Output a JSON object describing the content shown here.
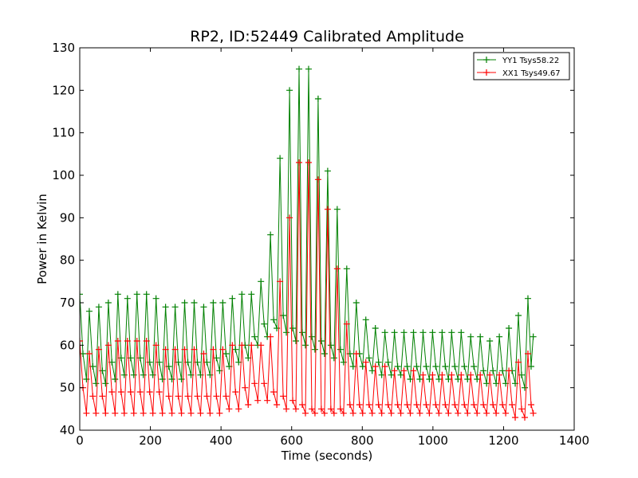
{
  "chart_data": {
    "type": "line",
    "title": "RP2, ID:52449 Calibrated Amplitude",
    "xlabel": "Time (seconds)",
    "ylabel": "Power in Kelvin",
    "xlim": [
      0,
      1400
    ],
    "ylim": [
      40,
      130
    ],
    "xticks": [
      0,
      200,
      400,
      600,
      800,
      1000,
      1200,
      1400
    ],
    "yticks": [
      40,
      50,
      60,
      70,
      80,
      90,
      100,
      110,
      120,
      130
    ],
    "grid": false,
    "legend_position": "top-right",
    "series": [
      {
        "name": "YY1 Tsys58.22",
        "color": "#008000",
        "marker": "+",
        "points": [
          [
            0,
            72
          ],
          [
            9,
            58
          ],
          [
            19,
            52
          ],
          [
            27,
            68
          ],
          [
            37,
            55
          ],
          [
            46,
            51
          ],
          [
            54,
            69
          ],
          [
            64,
            54
          ],
          [
            73,
            51
          ],
          [
            81,
            70
          ],
          [
            91,
            56
          ],
          [
            100,
            52
          ],
          [
            108,
            72
          ],
          [
            117,
            57
          ],
          [
            126,
            53
          ],
          [
            135,
            71
          ],
          [
            144,
            57
          ],
          [
            153,
            53
          ],
          [
            162,
            72
          ],
          [
            171,
            57
          ],
          [
            180,
            53
          ],
          [
            189,
            72
          ],
          [
            198,
            56
          ],
          [
            207,
            53
          ],
          [
            216,
            71
          ],
          [
            225,
            56
          ],
          [
            234,
            52
          ],
          [
            243,
            69
          ],
          [
            252,
            55
          ],
          [
            261,
            52
          ],
          [
            270,
            69
          ],
          [
            279,
            56
          ],
          [
            288,
            52
          ],
          [
            297,
            70
          ],
          [
            306,
            56
          ],
          [
            315,
            53
          ],
          [
            324,
            70
          ],
          [
            333,
            56
          ],
          [
            342,
            53
          ],
          [
            351,
            69
          ],
          [
            360,
            56
          ],
          [
            369,
            53
          ],
          [
            378,
            70
          ],
          [
            387,
            57
          ],
          [
            396,
            54
          ],
          [
            405,
            70
          ],
          [
            414,
            58
          ],
          [
            423,
            55
          ],
          [
            432,
            71
          ],
          [
            441,
            59
          ],
          [
            450,
            56
          ],
          [
            459,
            72
          ],
          [
            468,
            60
          ],
          [
            477,
            57
          ],
          [
            486,
            72
          ],
          [
            495,
            62
          ],
          [
            504,
            60
          ],
          [
            513,
            75
          ],
          [
            522,
            65
          ],
          [
            531,
            62
          ],
          [
            540,
            86
          ],
          [
            549,
            66
          ],
          [
            558,
            64
          ],
          [
            567,
            104
          ],
          [
            576,
            67
          ],
          [
            585,
            63
          ],
          [
            594,
            120
          ],
          [
            603,
            64
          ],
          [
            612,
            61
          ],
          [
            621,
            125
          ],
          [
            630,
            63
          ],
          [
            639,
            60
          ],
          [
            648,
            125
          ],
          [
            657,
            62
          ],
          [
            666,
            59
          ],
          [
            675,
            118
          ],
          [
            684,
            61
          ],
          [
            693,
            58
          ],
          [
            702,
            101
          ],
          [
            711,
            60
          ],
          [
            720,
            57
          ],
          [
            729,
            92
          ],
          [
            738,
            59
          ],
          [
            747,
            56
          ],
          [
            756,
            78
          ],
          [
            765,
            58
          ],
          [
            774,
            55
          ],
          [
            783,
            70
          ],
          [
            792,
            58
          ],
          [
            801,
            55
          ],
          [
            810,
            66
          ],
          [
            819,
            57
          ],
          [
            828,
            54
          ],
          [
            837,
            64
          ],
          [
            846,
            56
          ],
          [
            855,
            53
          ],
          [
            864,
            63
          ],
          [
            873,
            56
          ],
          [
            882,
            53
          ],
          [
            891,
            63
          ],
          [
            900,
            55
          ],
          [
            909,
            53
          ],
          [
            918,
            63
          ],
          [
            927,
            55
          ],
          [
            936,
            52
          ],
          [
            945,
            63
          ],
          [
            954,
            55
          ],
          [
            963,
            52
          ],
          [
            972,
            63
          ],
          [
            981,
            55
          ],
          [
            990,
            52
          ],
          [
            999,
            63
          ],
          [
            1008,
            55
          ],
          [
            1017,
            52
          ],
          [
            1026,
            63
          ],
          [
            1035,
            55
          ],
          [
            1044,
            52
          ],
          [
            1053,
            63
          ],
          [
            1062,
            55
          ],
          [
            1071,
            52
          ],
          [
            1080,
            63
          ],
          [
            1089,
            55
          ],
          [
            1098,
            52
          ],
          [
            1107,
            62
          ],
          [
            1116,
            55
          ],
          [
            1125,
            52
          ],
          [
            1134,
            62
          ],
          [
            1143,
            54
          ],
          [
            1152,
            51
          ],
          [
            1161,
            61
          ],
          [
            1170,
            54
          ],
          [
            1179,
            51
          ],
          [
            1188,
            62
          ],
          [
            1197,
            54
          ],
          [
            1206,
            51
          ],
          [
            1215,
            64
          ],
          [
            1224,
            54
          ],
          [
            1233,
            51
          ],
          [
            1242,
            67
          ],
          [
            1251,
            53
          ],
          [
            1260,
            50
          ],
          [
            1269,
            71
          ],
          [
            1278,
            55
          ],
          [
            1284,
            62
          ]
        ]
      },
      {
        "name": "XX1 Tsys49.67",
        "color": "#ff0000",
        "marker": "+",
        "points": [
          [
            0,
            61
          ],
          [
            9,
            50
          ],
          [
            19,
            44
          ],
          [
            27,
            58
          ],
          [
            37,
            48
          ],
          [
            46,
            44
          ],
          [
            54,
            59
          ],
          [
            64,
            48
          ],
          [
            73,
            44
          ],
          [
            81,
            60
          ],
          [
            91,
            49
          ],
          [
            100,
            44
          ],
          [
            108,
            61
          ],
          [
            117,
            49
          ],
          [
            126,
            44
          ],
          [
            135,
            61
          ],
          [
            144,
            49
          ],
          [
            153,
            44
          ],
          [
            162,
            61
          ],
          [
            171,
            49
          ],
          [
            180,
            44
          ],
          [
            189,
            61
          ],
          [
            198,
            49
          ],
          [
            207,
            44
          ],
          [
            216,
            60
          ],
          [
            225,
            49
          ],
          [
            234,
            44
          ],
          [
            243,
            59
          ],
          [
            252,
            48
          ],
          [
            261,
            44
          ],
          [
            270,
            59
          ],
          [
            279,
            48
          ],
          [
            288,
            44
          ],
          [
            297,
            59
          ],
          [
            306,
            48
          ],
          [
            315,
            44
          ],
          [
            324,
            59
          ],
          [
            333,
            48
          ],
          [
            342,
            44
          ],
          [
            351,
            58
          ],
          [
            360,
            48
          ],
          [
            369,
            44
          ],
          [
            378,
            59
          ],
          [
            387,
            48
          ],
          [
            396,
            44
          ],
          [
            405,
            59
          ],
          [
            414,
            48
          ],
          [
            423,
            45
          ],
          [
            432,
            60
          ],
          [
            441,
            49
          ],
          [
            450,
            45
          ],
          [
            459,
            60
          ],
          [
            468,
            50
          ],
          [
            477,
            46
          ],
          [
            486,
            60
          ],
          [
            495,
            51
          ],
          [
            504,
            47
          ],
          [
            513,
            60
          ],
          [
            522,
            51
          ],
          [
            531,
            47
          ],
          [
            540,
            62
          ],
          [
            549,
            49
          ],
          [
            558,
            46
          ],
          [
            567,
            75
          ],
          [
            576,
            48
          ],
          [
            585,
            45
          ],
          [
            594,
            90
          ],
          [
            603,
            47
          ],
          [
            612,
            45
          ],
          [
            621,
            103
          ],
          [
            630,
            46
          ],
          [
            639,
            44
          ],
          [
            648,
            103
          ],
          [
            657,
            45
          ],
          [
            666,
            44
          ],
          [
            675,
            99
          ],
          [
            684,
            45
          ],
          [
            693,
            44
          ],
          [
            702,
            92
          ],
          [
            711,
            45
          ],
          [
            720,
            44
          ],
          [
            729,
            78
          ],
          [
            738,
            45
          ],
          [
            747,
            44
          ],
          [
            756,
            65
          ],
          [
            765,
            46
          ],
          [
            774,
            44
          ],
          [
            783,
            58
          ],
          [
            792,
            46
          ],
          [
            801,
            44
          ],
          [
            810,
            56
          ],
          [
            819,
            46
          ],
          [
            828,
            44
          ],
          [
            837,
            55
          ],
          [
            846,
            46
          ],
          [
            855,
            44
          ],
          [
            864,
            55
          ],
          [
            873,
            46
          ],
          [
            882,
            44
          ],
          [
            891,
            54
          ],
          [
            900,
            46
          ],
          [
            909,
            44
          ],
          [
            918,
            54
          ],
          [
            927,
            46
          ],
          [
            936,
            44
          ],
          [
            945,
            54
          ],
          [
            954,
            46
          ],
          [
            963,
            44
          ],
          [
            972,
            53
          ],
          [
            981,
            46
          ],
          [
            990,
            44
          ],
          [
            999,
            53
          ],
          [
            1008,
            46
          ],
          [
            1017,
            44
          ],
          [
            1026,
            53
          ],
          [
            1035,
            46
          ],
          [
            1044,
            44
          ],
          [
            1053,
            53
          ],
          [
            1062,
            46
          ],
          [
            1071,
            44
          ],
          [
            1080,
            53
          ],
          [
            1089,
            46
          ],
          [
            1098,
            44
          ],
          [
            1107,
            53
          ],
          [
            1116,
            46
          ],
          [
            1125,
            44
          ],
          [
            1134,
            53
          ],
          [
            1143,
            46
          ],
          [
            1152,
            44
          ],
          [
            1161,
            53
          ],
          [
            1170,
            46
          ],
          [
            1179,
            44
          ],
          [
            1188,
            53
          ],
          [
            1197,
            46
          ],
          [
            1206,
            44
          ],
          [
            1215,
            54
          ],
          [
            1224,
            46
          ],
          [
            1233,
            43
          ],
          [
            1242,
            56
          ],
          [
            1251,
            45
          ],
          [
            1260,
            43
          ],
          [
            1269,
            58
          ],
          [
            1278,
            46
          ],
          [
            1284,
            44
          ]
        ]
      }
    ]
  }
}
